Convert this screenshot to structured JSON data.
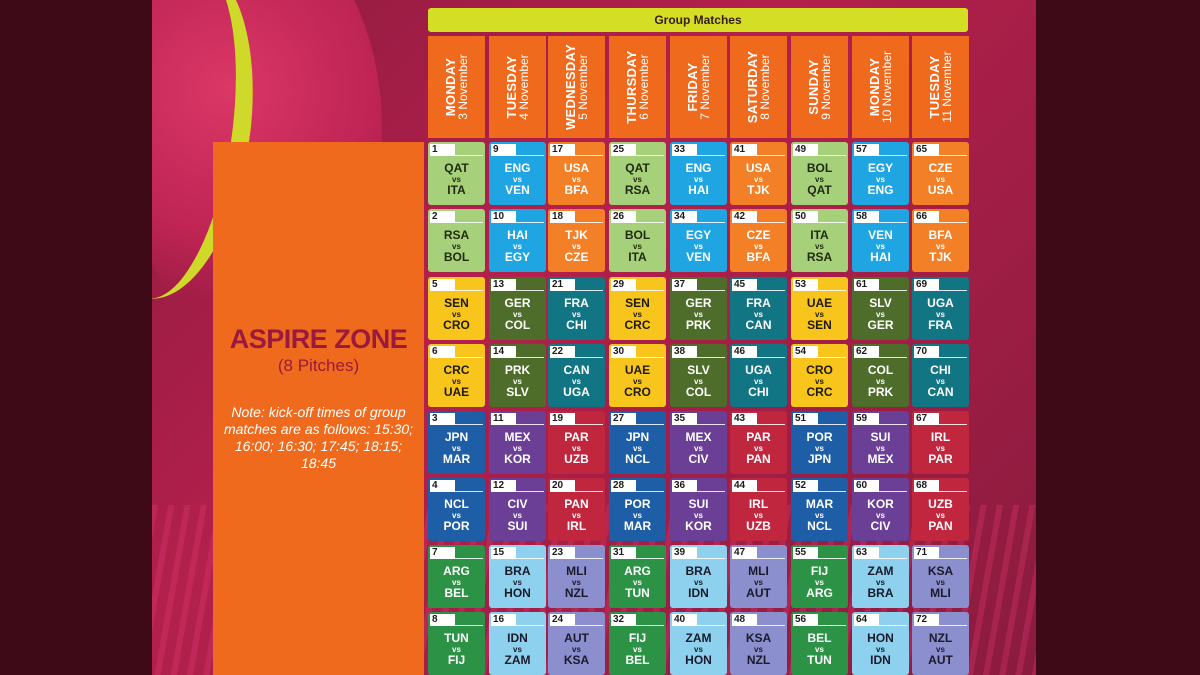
{
  "header": {
    "title": "Group Matches"
  },
  "venue": {
    "name": "ASPIRE ZONE",
    "pitches": "(8 Pitches)",
    "note": "Note: kick-off times of group matches are as follows: 15:30; 16:00; 16:30; 17:45; 18:15; 18:45"
  },
  "colors": {
    "lgreen": "#a6d07a",
    "blue": "#1fa5e2",
    "orange": "#f37f27",
    "yellow": "#f7c51c",
    "olive": "#4e6c2a",
    "teal": "#127584",
    "navy": "#1d5ea6",
    "purple": "#6b3f96",
    "red": "#c0263d",
    "dgreen": "#2c9346",
    "lblue": "#8dd1ef",
    "lavender": "#8c8fcd",
    "header_bar": "#d4de24",
    "day_header": "#f06a1d"
  },
  "days": [
    {
      "name": "MONDAY",
      "date": "3 November"
    },
    {
      "name": "TUESDAY",
      "date": "4 November"
    },
    {
      "name": "WEDNESDAY",
      "date": "5 November"
    },
    {
      "name": "THURSDAY",
      "date": "6 November"
    },
    {
      "name": "FRIDAY",
      "date": "7 November"
    },
    {
      "name": "SATURDAY",
      "date": "8 November"
    },
    {
      "name": "SUNDAY",
      "date": "9 November"
    },
    {
      "name": "MONDAY",
      "date": "10 November"
    },
    {
      "name": "TUESDAY",
      "date": "11 November"
    }
  ],
  "vs_label": "vs",
  "rows": [
    {
      "matches": [
        {
          "num": "1",
          "home": "QAT",
          "away": "ITA",
          "color": "lgreen"
        },
        {
          "num": "9",
          "home": "ENG",
          "away": "VEN",
          "color": "blue"
        },
        {
          "num": "17",
          "home": "USA",
          "away": "BFA",
          "color": "orange"
        },
        {
          "num": "25",
          "home": "QAT",
          "away": "RSA",
          "color": "lgreen"
        },
        {
          "num": "33",
          "home": "ENG",
          "away": "HAI",
          "color": "blue"
        },
        {
          "num": "41",
          "home": "USA",
          "away": "TJK",
          "color": "orange"
        },
        {
          "num": "49",
          "home": "BOL",
          "away": "QAT",
          "color": "lgreen"
        },
        {
          "num": "57",
          "home": "EGY",
          "away": "ENG",
          "color": "blue"
        },
        {
          "num": "65",
          "home": "CZE",
          "away": "USA",
          "color": "orange"
        }
      ]
    },
    {
      "matches": [
        {
          "num": "2",
          "home": "RSA",
          "away": "BOL",
          "color": "lgreen"
        },
        {
          "num": "10",
          "home": "HAI",
          "away": "EGY",
          "color": "blue"
        },
        {
          "num": "18",
          "home": "TJK",
          "away": "CZE",
          "color": "orange"
        },
        {
          "num": "26",
          "home": "BOL",
          "away": "ITA",
          "color": "lgreen"
        },
        {
          "num": "34",
          "home": "EGY",
          "away": "VEN",
          "color": "blue"
        },
        {
          "num": "42",
          "home": "CZE",
          "away": "BFA",
          "color": "orange"
        },
        {
          "num": "50",
          "home": "ITA",
          "away": "RSA",
          "color": "lgreen"
        },
        {
          "num": "58",
          "home": "VEN",
          "away": "HAI",
          "color": "blue"
        },
        {
          "num": "66",
          "home": "BFA",
          "away": "TJK",
          "color": "orange"
        }
      ]
    },
    {
      "matches": [
        {
          "num": "5",
          "home": "SEN",
          "away": "CRO",
          "color": "yellow"
        },
        {
          "num": "13",
          "home": "GER",
          "away": "COL",
          "color": "olive"
        },
        {
          "num": "21",
          "home": "FRA",
          "away": "CHI",
          "color": "teal"
        },
        {
          "num": "29",
          "home": "SEN",
          "away": "CRC",
          "color": "yellow"
        },
        {
          "num": "37",
          "home": "GER",
          "away": "PRK",
          "color": "olive"
        },
        {
          "num": "45",
          "home": "FRA",
          "away": "CAN",
          "color": "teal"
        },
        {
          "num": "53",
          "home": "UAE",
          "away": "SEN",
          "color": "yellow"
        },
        {
          "num": "61",
          "home": "SLV",
          "away": "GER",
          "color": "olive"
        },
        {
          "num": "69",
          "home": "UGA",
          "away": "FRA",
          "color": "teal"
        }
      ]
    },
    {
      "matches": [
        {
          "num": "6",
          "home": "CRC",
          "away": "UAE",
          "color": "yellow"
        },
        {
          "num": "14",
          "home": "PRK",
          "away": "SLV",
          "color": "olive"
        },
        {
          "num": "22",
          "home": "CAN",
          "away": "UGA",
          "color": "teal"
        },
        {
          "num": "30",
          "home": "UAE",
          "away": "CRO",
          "color": "yellow"
        },
        {
          "num": "38",
          "home": "SLV",
          "away": "COL",
          "color": "olive"
        },
        {
          "num": "46",
          "home": "UGA",
          "away": "CHI",
          "color": "teal"
        },
        {
          "num": "54",
          "home": "CRO",
          "away": "CRC",
          "color": "yellow"
        },
        {
          "num": "62",
          "home": "COL",
          "away": "PRK",
          "color": "olive"
        },
        {
          "num": "70",
          "home": "CHI",
          "away": "CAN",
          "color": "teal"
        }
      ]
    },
    {
      "matches": [
        {
          "num": "3",
          "home": "JPN",
          "away": "MAR",
          "color": "navy"
        },
        {
          "num": "11",
          "home": "MEX",
          "away": "KOR",
          "color": "purple"
        },
        {
          "num": "19",
          "home": "PAR",
          "away": "UZB",
          "color": "red"
        },
        {
          "num": "27",
          "home": "JPN",
          "away": "NCL",
          "color": "navy"
        },
        {
          "num": "35",
          "home": "MEX",
          "away": "CIV",
          "color": "purple"
        },
        {
          "num": "43",
          "home": "PAR",
          "away": "PAN",
          "color": "red"
        },
        {
          "num": "51",
          "home": "POR",
          "away": "JPN",
          "color": "navy"
        },
        {
          "num": "59",
          "home": "SUI",
          "away": "MEX",
          "color": "purple"
        },
        {
          "num": "67",
          "home": "IRL",
          "away": "PAR",
          "color": "red"
        }
      ]
    },
    {
      "matches": [
        {
          "num": "4",
          "home": "NCL",
          "away": "POR",
          "color": "navy"
        },
        {
          "num": "12",
          "home": "CIV",
          "away": "SUI",
          "color": "purple"
        },
        {
          "num": "20",
          "home": "PAN",
          "away": "IRL",
          "color": "red"
        },
        {
          "num": "28",
          "home": "POR",
          "away": "MAR",
          "color": "navy"
        },
        {
          "num": "36",
          "home": "SUI",
          "away": "KOR",
          "color": "purple"
        },
        {
          "num": "44",
          "home": "IRL",
          "away": "UZB",
          "color": "red"
        },
        {
          "num": "52",
          "home": "MAR",
          "away": "NCL",
          "color": "navy"
        },
        {
          "num": "60",
          "home": "KOR",
          "away": "CIV",
          "color": "purple"
        },
        {
          "num": "68",
          "home": "UZB",
          "away": "PAN",
          "color": "red"
        }
      ]
    },
    {
      "matches": [
        {
          "num": "7",
          "home": "ARG",
          "away": "BEL",
          "color": "dgreen"
        },
        {
          "num": "15",
          "home": "BRA",
          "away": "HON",
          "color": "lblue"
        },
        {
          "num": "23",
          "home": "MLI",
          "away": "NZL",
          "color": "lavender"
        },
        {
          "num": "31",
          "home": "ARG",
          "away": "TUN",
          "color": "dgreen"
        },
        {
          "num": "39",
          "home": "BRA",
          "away": "IDN",
          "color": "lblue"
        },
        {
          "num": "47",
          "home": "MLI",
          "away": "AUT",
          "color": "lavender"
        },
        {
          "num": "55",
          "home": "FIJ",
          "away": "ARG",
          "color": "dgreen"
        },
        {
          "num": "63",
          "home": "ZAM",
          "away": "BRA",
          "color": "lblue"
        },
        {
          "num": "71",
          "home": "KSA",
          "away": "MLI",
          "color": "lavender"
        }
      ]
    },
    {
      "matches": [
        {
          "num": "8",
          "home": "TUN",
          "away": "FIJ",
          "color": "dgreen"
        },
        {
          "num": "16",
          "home": "IDN",
          "away": "ZAM",
          "color": "lblue"
        },
        {
          "num": "24",
          "home": "AUT",
          "away": "KSA",
          "color": "lavender"
        },
        {
          "num": "32",
          "home": "FIJ",
          "away": "BEL",
          "color": "dgreen"
        },
        {
          "num": "40",
          "home": "ZAM",
          "away": "HON",
          "color": "lblue"
        },
        {
          "num": "48",
          "home": "KSA",
          "away": "NZL",
          "color": "lavender"
        },
        {
          "num": "56",
          "home": "BEL",
          "away": "TUN",
          "color": "dgreen"
        },
        {
          "num": "64",
          "home": "HON",
          "away": "IDN",
          "color": "lblue"
        },
        {
          "num": "72",
          "home": "NZL",
          "away": "AUT",
          "color": "lavender"
        }
      ]
    }
  ]
}
